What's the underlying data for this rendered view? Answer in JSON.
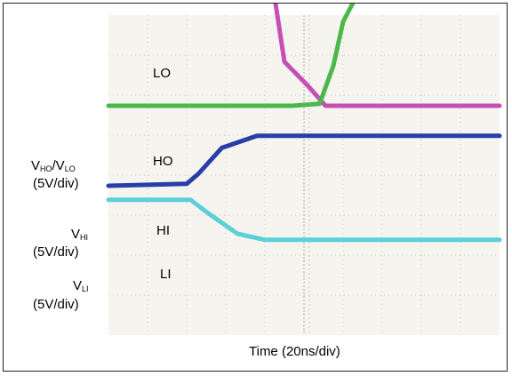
{
  "chart_data": {
    "type": "line",
    "xlabel": "Time (20ns/div)",
    "x_divisions": 10,
    "y_divisions": 8,
    "colors": {
      "LO": "#c450b4",
      "HO": "#4db84a",
      "HI": "#283fa8",
      "LI": "#5ccfd8",
      "background": "#f6f4ef",
      "grid": "#c9c9c9"
    },
    "series": [
      {
        "name": "LO",
        "x": [
          0,
          4.05,
          4.25,
          4.5,
          5.1,
          5.55,
          10
        ],
        "y": [
          5.1,
          5.1,
          4.7,
          3.1,
          2.5,
          2.0,
          2.0
        ]
      },
      {
        "name": "HO",
        "x": [
          0,
          4.7,
          5.4,
          5.75,
          6.0,
          6.4,
          7.0,
          10
        ],
        "y": [
          2.0,
          2.0,
          2.05,
          3.0,
          4.1,
          4.85,
          5.0,
          5.0
        ]
      },
      {
        "name": "HI",
        "x": [
          0,
          2.0,
          2.3,
          2.9,
          3.8,
          10
        ],
        "y": [
          0.0,
          0.05,
          0.3,
          0.95,
          1.25,
          1.25
        ]
      },
      {
        "name": "LI",
        "x": [
          0,
          2.1,
          2.5,
          3.3,
          4.0,
          10
        ],
        "y": [
          -0.35,
          -0.35,
          -0.65,
          -1.2,
          -1.35,
          -1.35
        ]
      }
    ]
  },
  "labels": {
    "lo": "LO",
    "ho": "HO",
    "hi": "HI",
    "li": "LI",
    "vho_v": "V",
    "vho_sub": "HO",
    "vho_slash_v": "/V",
    "vlo_sub": "LO",
    "scale1": "(5V/div)",
    "vhi_v": "V",
    "vhi_sub": "HI",
    "scale2": "(5V/div)",
    "vli_v": "V",
    "vli_sub": "LI",
    "scale3": "(5V/div)",
    "xlabel": "Time (20ns/div)"
  }
}
